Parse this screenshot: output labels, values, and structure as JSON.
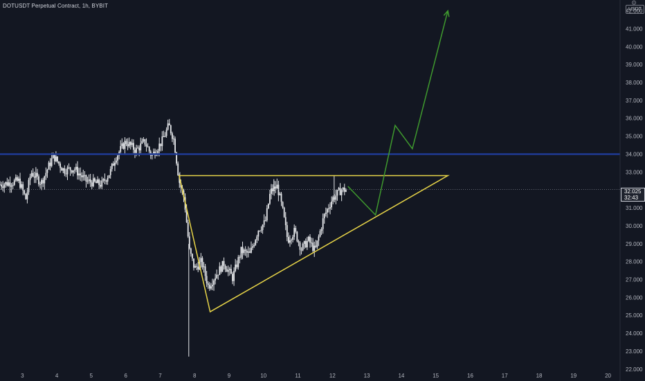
{
  "header": {
    "title": "DOTUSDT Perpetual Contract, 1h, BYBIT",
    "currency": "USDT",
    "settings_icon": "gear-icon"
  },
  "price_tag": {
    "price": "32.025",
    "countdown": "32:43"
  },
  "colors": {
    "background": "#131722",
    "candle": "#e8eaed",
    "resistance": "#1f3a93",
    "triangle": "#e8d548",
    "projection": "#3f9a2e",
    "axis_text": "#b2b5be"
  },
  "chart_data": {
    "type": "candlestick",
    "symbol": "DOTUSDT",
    "interval": "1h",
    "y_ticks": [
      "22.000",
      "23.000",
      "24.000",
      "25.000",
      "26.000",
      "27.000",
      "28.000",
      "29.000",
      "30.000",
      "31.000",
      "32.000",
      "33.000",
      "34.000",
      "35.000",
      "36.000",
      "37.000",
      "38.000",
      "39.000",
      "40.000",
      "41.000",
      "42.000"
    ],
    "x_ticks": [
      "3",
      "4",
      "5",
      "6",
      "7",
      "8",
      "9",
      "10",
      "11",
      "12",
      "13",
      "14",
      "15",
      "16",
      "17",
      "18",
      "19",
      "20"
    ],
    "ylim": [
      21.8,
      42.6
    ],
    "xlim": [
      2.35,
      20.35
    ],
    "current_price": 32.025,
    "horizontal_line": {
      "price": 34.0
    },
    "triangle": {
      "points": [
        [
          7.55,
          32.8
        ],
        [
          8.45,
          25.2
        ],
        [
          15.35,
          32.8
        ]
      ]
    },
    "projection": [
      [
        12.45,
        32.2
      ],
      [
        13.25,
        30.6
      ],
      [
        13.82,
        35.6
      ],
      [
        14.32,
        34.3
      ],
      [
        15.35,
        42.0
      ]
    ],
    "price_path": [
      [
        2.35,
        32.3
      ],
      [
        2.9,
        32.5
      ],
      [
        3.1,
        31.5
      ],
      [
        3.25,
        33.0
      ],
      [
        3.55,
        32.4
      ],
      [
        3.9,
        33.9
      ],
      [
        4.2,
        33.1
      ],
      [
        4.5,
        33.2
      ],
      [
        4.85,
        32.5
      ],
      [
        5.3,
        32.3
      ],
      [
        5.55,
        33.0
      ],
      [
        5.7,
        33.8
      ],
      [
        6.0,
        34.7
      ],
      [
        6.3,
        34.2
      ],
      [
        6.55,
        34.7
      ],
      [
        6.75,
        33.9
      ],
      [
        7.05,
        34.7
      ],
      [
        7.25,
        35.6
      ],
      [
        7.4,
        34.8
      ],
      [
        7.55,
        32.5
      ],
      [
        7.7,
        31.5
      ],
      [
        7.85,
        28.6
      ],
      [
        8.0,
        27.6
      ],
      [
        8.2,
        28.0
      ],
      [
        8.4,
        26.6
      ],
      [
        8.6,
        27.2
      ],
      [
        8.85,
        27.9
      ],
      [
        9.1,
        27.1
      ],
      [
        9.35,
        28.6
      ],
      [
        9.6,
        28.4
      ],
      [
        9.85,
        29.8
      ],
      [
        10.05,
        30.2
      ],
      [
        10.2,
        31.9
      ],
      [
        10.4,
        32.2
      ],
      [
        10.55,
        30.9
      ],
      [
        10.7,
        29.2
      ],
      [
        10.9,
        29.7
      ],
      [
        11.1,
        28.7
      ],
      [
        11.3,
        29.2
      ],
      [
        11.5,
        28.6
      ],
      [
        11.75,
        30.5
      ],
      [
        12.0,
        31.5
      ],
      [
        12.25,
        32.0
      ],
      [
        12.4,
        32.0
      ]
    ],
    "wicks": [
      [
        7.83,
        22.7
      ],
      [
        7.57,
        33.0
      ],
      [
        10.3,
        32.6
      ],
      [
        12.05,
        32.8
      ]
    ]
  }
}
